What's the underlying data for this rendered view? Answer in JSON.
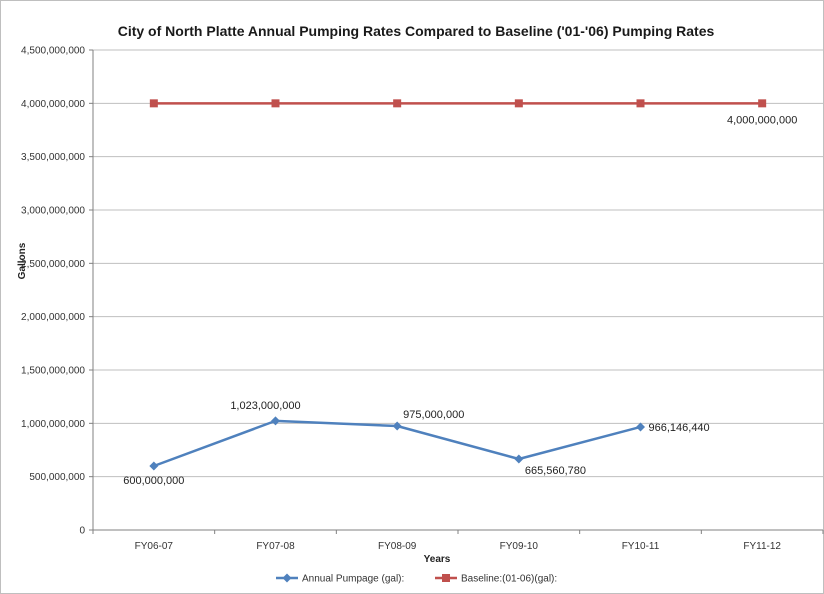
{
  "chart_data": {
    "type": "line",
    "title": "City of North Platte Annual Pumping Rates Compared to Baseline ('01-'06) Pumping Rates",
    "xlabel": "Years",
    "ylabel": "Gallons",
    "categories": [
      "FY06-07",
      "FY07-08",
      "FY08-09",
      "FY09-10",
      "FY10-11",
      "FY11-12"
    ],
    "ylim": [
      0,
      4500000000
    ],
    "yticks": [
      0,
      500000000,
      1000000000,
      1500000000,
      2000000000,
      2500000000,
      3000000000,
      3500000000,
      4000000000,
      4500000000
    ],
    "ytick_labels": [
      "0",
      "500,000,000",
      "1,000,000,000",
      "1,500,000,000",
      "2,000,000,000",
      "2,500,000,000",
      "3,000,000,000",
      "3,500,000,000",
      "4,000,000,000",
      "4,500,000,000"
    ],
    "grid": true,
    "legend_position": "bottom",
    "series": [
      {
        "name": "Annual Pumpage (gal):",
        "color": "#4f81bd",
        "marker": "diamond",
        "values": [
          600000000,
          1023000000,
          975000000,
          665560780,
          966146440,
          null
        ],
        "labels": [
          "600,000,000",
          "1,023,000,000",
          "975,000,000",
          "665,560,780",
          "966,146,440",
          ""
        ]
      },
      {
        "name": "Baseline:(01-06)(gal):",
        "color": "#c0504d",
        "marker": "square",
        "values": [
          4000000000,
          4000000000,
          4000000000,
          4000000000,
          4000000000,
          4000000000
        ],
        "labels": [
          "",
          "",
          "",
          "",
          "",
          "4,000,000,000"
        ]
      }
    ]
  }
}
